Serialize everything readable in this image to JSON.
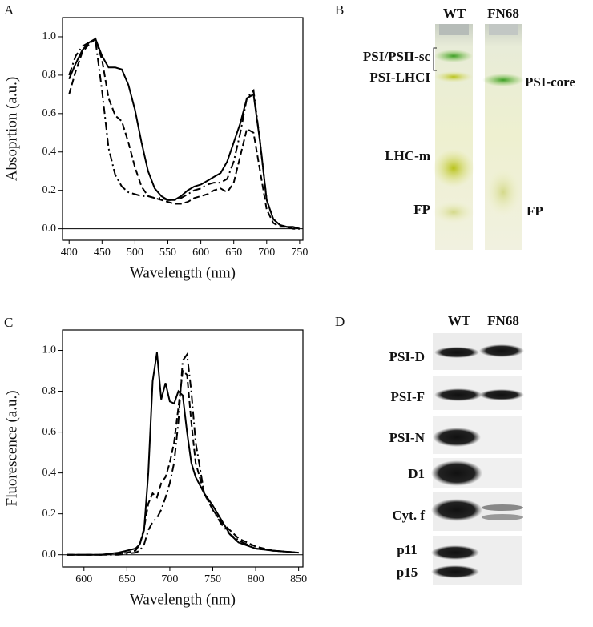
{
  "chart_data": [
    {
      "type": "line",
      "panel": "A",
      "xlabel": "Wavelength (nm)",
      "ylabel": "Absoprtion (a.u.)",
      "x": [
        400,
        410,
        420,
        430,
        440,
        450,
        460,
        470,
        480,
        490,
        500,
        510,
        520,
        530,
        540,
        550,
        560,
        570,
        580,
        590,
        600,
        610,
        620,
        630,
        640,
        650,
        660,
        670,
        680,
        690,
        700,
        710,
        720,
        730,
        740,
        750
      ],
      "series": [
        {
          "color": "#000000",
          "dash": "solid",
          "values": [
            0.78,
            0.86,
            0.93,
            0.97,
            0.99,
            0.9,
            0.84,
            0.84,
            0.83,
            0.75,
            0.62,
            0.45,
            0.3,
            0.21,
            0.17,
            0.15,
            0.15,
            0.17,
            0.2,
            0.22,
            0.23,
            0.25,
            0.27,
            0.29,
            0.35,
            0.45,
            0.55,
            0.68,
            0.7,
            0.45,
            0.15,
            0.05,
            0.02,
            0.01,
            0.01,
            0
          ]
        },
        {
          "color": "#000000",
          "dash": "dashed",
          "values": [
            0.7,
            0.82,
            0.92,
            0.96,
            0.99,
            0.88,
            0.68,
            0.59,
            0.56,
            0.45,
            0.32,
            0.22,
            0.17,
            0.16,
            0.15,
            0.14,
            0.13,
            0.13,
            0.14,
            0.16,
            0.17,
            0.18,
            0.2,
            0.21,
            0.19,
            0.24,
            0.38,
            0.52,
            0.5,
            0.3,
            0.1,
            0.03,
            0.01,
            0.01,
            0,
            0
          ]
        },
        {
          "color": "#000000",
          "dash": "dashdot",
          "values": [
            0.8,
            0.9,
            0.95,
            0.97,
            0.98,
            0.72,
            0.42,
            0.28,
            0.22,
            0.19,
            0.18,
            0.17,
            0.17,
            0.16,
            0.16,
            0.15,
            0.15,
            0.16,
            0.18,
            0.2,
            0.21,
            0.23,
            0.24,
            0.24,
            0.26,
            0.35,
            0.5,
            0.68,
            0.72,
            0.45,
            0.15,
            0.05,
            0.02,
            0.01,
            0,
            0
          ]
        }
      ],
      "xlim": [
        390,
        755
      ],
      "xticks": [
        400,
        450,
        500,
        550,
        600,
        650,
        700,
        750
      ],
      "ylim": [
        -0.06,
        1.1
      ],
      "yticks": [
        {
          "value": 0,
          "label": "0.0"
        },
        {
          "value": 0.2,
          "label": "0.2"
        },
        {
          "value": 0.4,
          "label": "0.4"
        },
        {
          "value": 0.6,
          "label": "0.6"
        },
        {
          "value": 0.8,
          "label": "0.8"
        },
        {
          "value": 1,
          "label": "1.0"
        }
      ],
      "zero_line": true
    },
    {
      "type": "line",
      "panel": "C",
      "xlabel": "Wavelength (nm)",
      "ylabel": "Fluorescence (a.u.)",
      "x": [
        580,
        600,
        620,
        640,
        650,
        660,
        665,
        670,
        675,
        680,
        685,
        690,
        695,
        700,
        705,
        710,
        715,
        720,
        725,
        730,
        740,
        750,
        760,
        770,
        780,
        800,
        820,
        850
      ],
      "series": [
        {
          "color": "#000000",
          "dash": "solid",
          "values": [
            0,
            0,
            0,
            0.01,
            0.02,
            0.03,
            0.05,
            0.12,
            0.4,
            0.85,
            0.99,
            0.76,
            0.84,
            0.75,
            0.74,
            0.8,
            0.78,
            0.6,
            0.45,
            0.38,
            0.3,
            0.24,
            0.17,
            0.1,
            0.06,
            0.03,
            0.02,
            0.01
          ]
        },
        {
          "color": "#000000",
          "dash": "dashed",
          "values": [
            0,
            0,
            0,
            0.005,
            0.01,
            0.02,
            0.05,
            0.13,
            0.25,
            0.3,
            0.28,
            0.35,
            0.38,
            0.45,
            0.55,
            0.72,
            0.9,
            0.88,
            0.65,
            0.45,
            0.3,
            0.22,
            0.16,
            0.12,
            0.08,
            0.04,
            0.02,
            0.01
          ]
        },
        {
          "color": "#000000",
          "dash": "dashdot",
          "values": [
            0,
            0,
            0,
            0,
            0.005,
            0.01,
            0.02,
            0.05,
            0.12,
            0.16,
            0.18,
            0.22,
            0.28,
            0.35,
            0.45,
            0.65,
            0.95,
            0.98,
            0.8,
            0.55,
            0.3,
            0.22,
            0.15,
            0.1,
            0.07,
            0.03,
            0.02,
            0.01
          ]
        }
      ],
      "xlim": [
        575,
        855
      ],
      "xticks": [
        600,
        650,
        700,
        750,
        800,
        850
      ],
      "ylim": [
        -0.06,
        1.1
      ],
      "yticks": [
        {
          "value": 0,
          "label": "0.0"
        },
        {
          "value": 0.2,
          "label": "0.2"
        },
        {
          "value": 0.4,
          "label": "0.4"
        },
        {
          "value": 0.6,
          "label": "0.6"
        },
        {
          "value": 0.8,
          "label": "0.8"
        },
        {
          "value": 1,
          "label": "1.0"
        }
      ],
      "zero_line": true
    }
  ],
  "panel_b": {
    "letter": "B",
    "lanes": [
      "WT",
      "FN68"
    ],
    "left_labels": [
      "PSI/PSII-sc",
      "PSI-LHCI",
      "LHC-m",
      "FP"
    ],
    "right_labels": [
      "PSI-core",
      "FP"
    ]
  },
  "panel_d": {
    "letter": "D",
    "lanes": [
      "WT",
      "FN68"
    ],
    "rows": [
      "PSI-D",
      "PSI-F",
      "PSI-N",
      "D1",
      "Cyt. f",
      "p11",
      "p15"
    ]
  }
}
